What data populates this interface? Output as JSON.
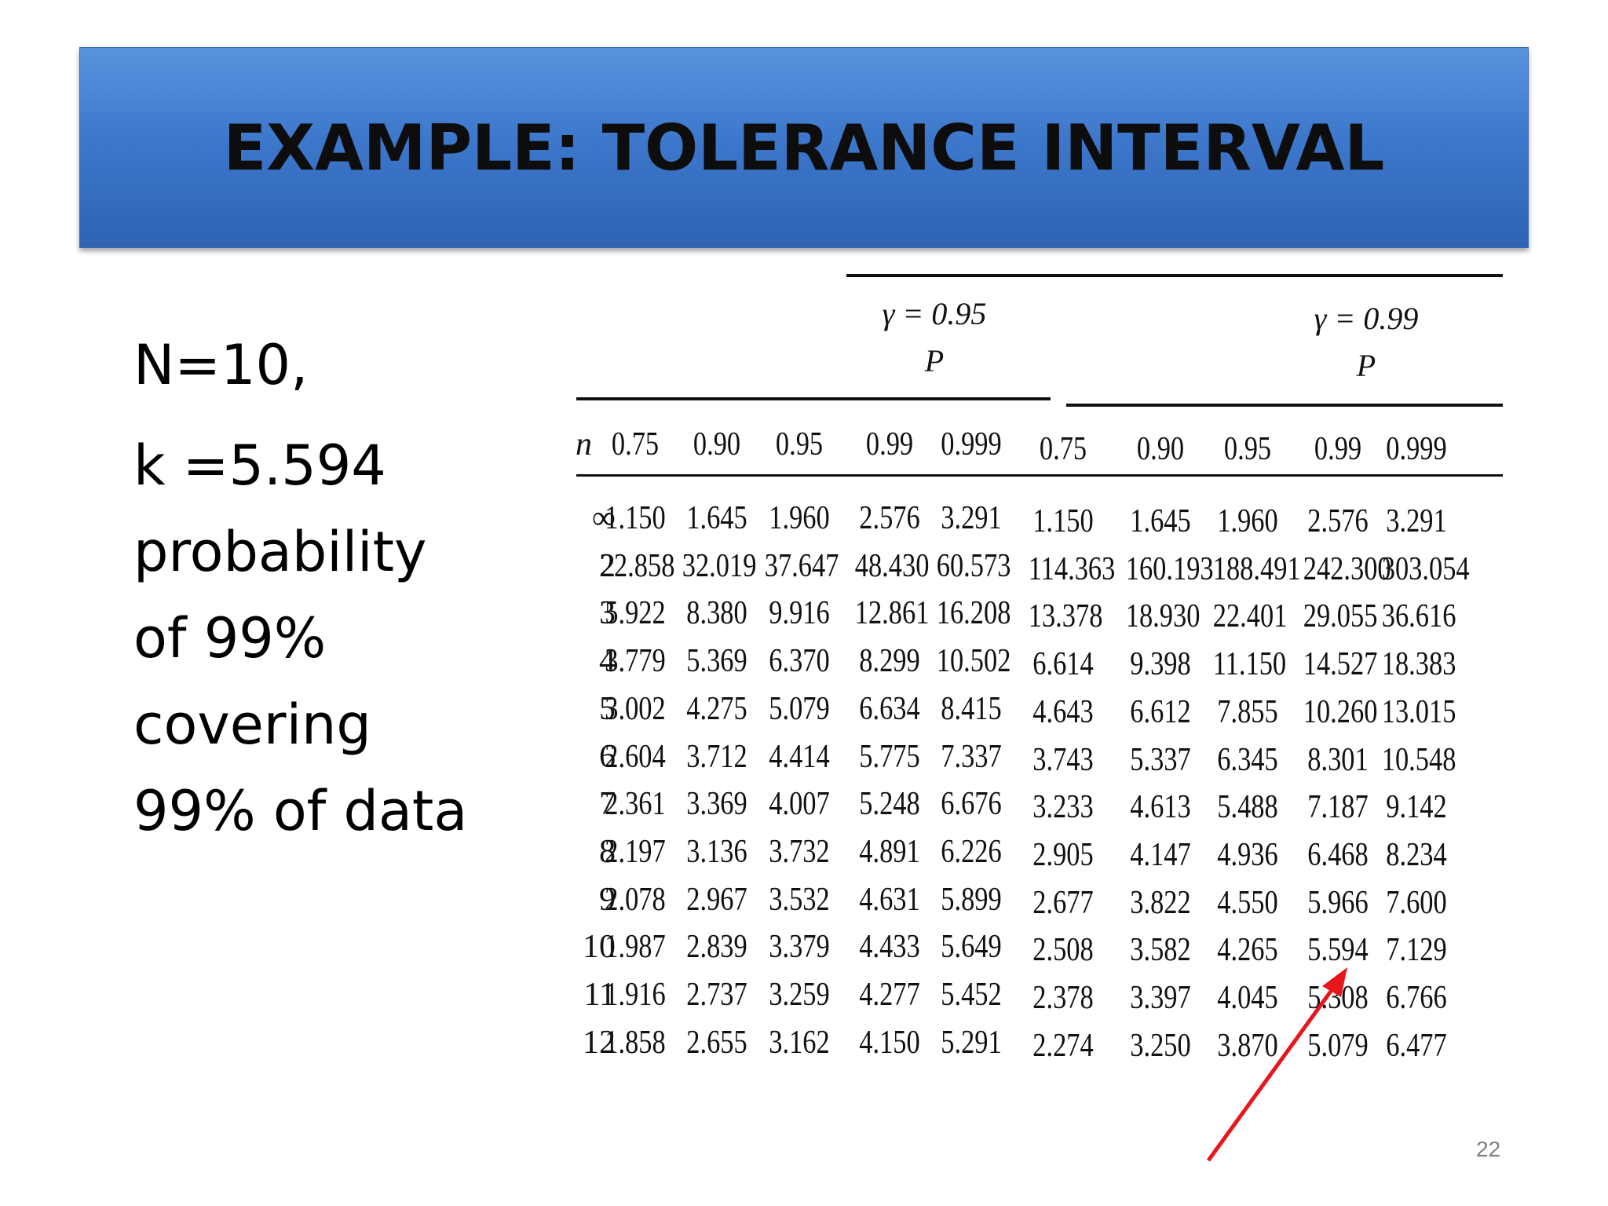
{
  "slide": {
    "title": "EXAMPLE: TOLERANCE INTERVAL",
    "lines": [
      "N=10,",
      "k =5.594",
      "probability",
      "of 99%",
      "covering",
      "99% of data"
    ],
    "page_number": "22",
    "arrow_color": "#e8161b"
  },
  "table": {
    "gamma_headers": [
      "γ = 0.95",
      "γ = 0.99"
    ],
    "p_label": "P",
    "n_label": "n",
    "p_values": [
      "0.75",
      "0.90",
      "0.95",
      "0.99",
      "0.999",
      "0.75",
      "0.90",
      "0.95",
      "0.99",
      "0.999"
    ],
    "rows": [
      {
        "n": "∞",
        "values": [
          "1.150",
          "1.645",
          "1.960",
          "2.576",
          "3.291",
          "1.150",
          "1.645",
          "1.960",
          "2.576",
          "3.291"
        ]
      },
      {
        "n": "2",
        "values": [
          "22.858",
          "32.019",
          "37.647",
          "48.430",
          "60.573",
          "114.363",
          "160.193",
          "188.491",
          "242.300",
          "303.054"
        ]
      },
      {
        "n": "3",
        "values": [
          "5.922",
          "8.380",
          "9.916",
          "12.861",
          "16.208",
          "13.378",
          "18.930",
          "22.401",
          "29.055",
          "36.616"
        ]
      },
      {
        "n": "4",
        "values": [
          "3.779",
          "5.369",
          "6.370",
          "8.299",
          "10.502",
          "6.614",
          "9.398",
          "11.150",
          "14.527",
          "18.383"
        ]
      },
      {
        "n": "5",
        "values": [
          "3.002",
          "4.275",
          "5.079",
          "6.634",
          "8.415",
          "4.643",
          "6.612",
          "7.855",
          "10.260",
          "13.015"
        ]
      },
      {
        "n": "6",
        "values": [
          "2.604",
          "3.712",
          "4.414",
          "5.775",
          "7.337",
          "3.743",
          "5.337",
          "6.345",
          "8.301",
          "10.548"
        ]
      },
      {
        "n": "7",
        "values": [
          "2.361",
          "3.369",
          "4.007",
          "5.248",
          "6.676",
          "3.233",
          "4.613",
          "5.488",
          "7.187",
          "9.142"
        ]
      },
      {
        "n": "8",
        "values": [
          "2.197",
          "3.136",
          "3.732",
          "4.891",
          "6.226",
          "2.905",
          "4.147",
          "4.936",
          "6.468",
          "8.234"
        ]
      },
      {
        "n": "9",
        "values": [
          "2.078",
          "2.967",
          "3.532",
          "4.631",
          "5.899",
          "2.677",
          "3.822",
          "4.550",
          "5.966",
          "7.600"
        ]
      },
      {
        "n": "10",
        "values": [
          "1.987",
          "2.839",
          "3.379",
          "4.433",
          "5.649",
          "2.508",
          "3.582",
          "4.265",
          "5.594",
          "7.129"
        ]
      },
      {
        "n": "11",
        "values": [
          "1.916",
          "2.737",
          "3.259",
          "4.277",
          "5.452",
          "2.378",
          "3.397",
          "4.045",
          "5.308",
          "6.766"
        ]
      },
      {
        "n": "12",
        "values": [
          "1.858",
          "2.655",
          "3.162",
          "4.150",
          "5.291",
          "2.274",
          "3.250",
          "3.870",
          "5.079",
          "6.477"
        ]
      }
    ]
  }
}
